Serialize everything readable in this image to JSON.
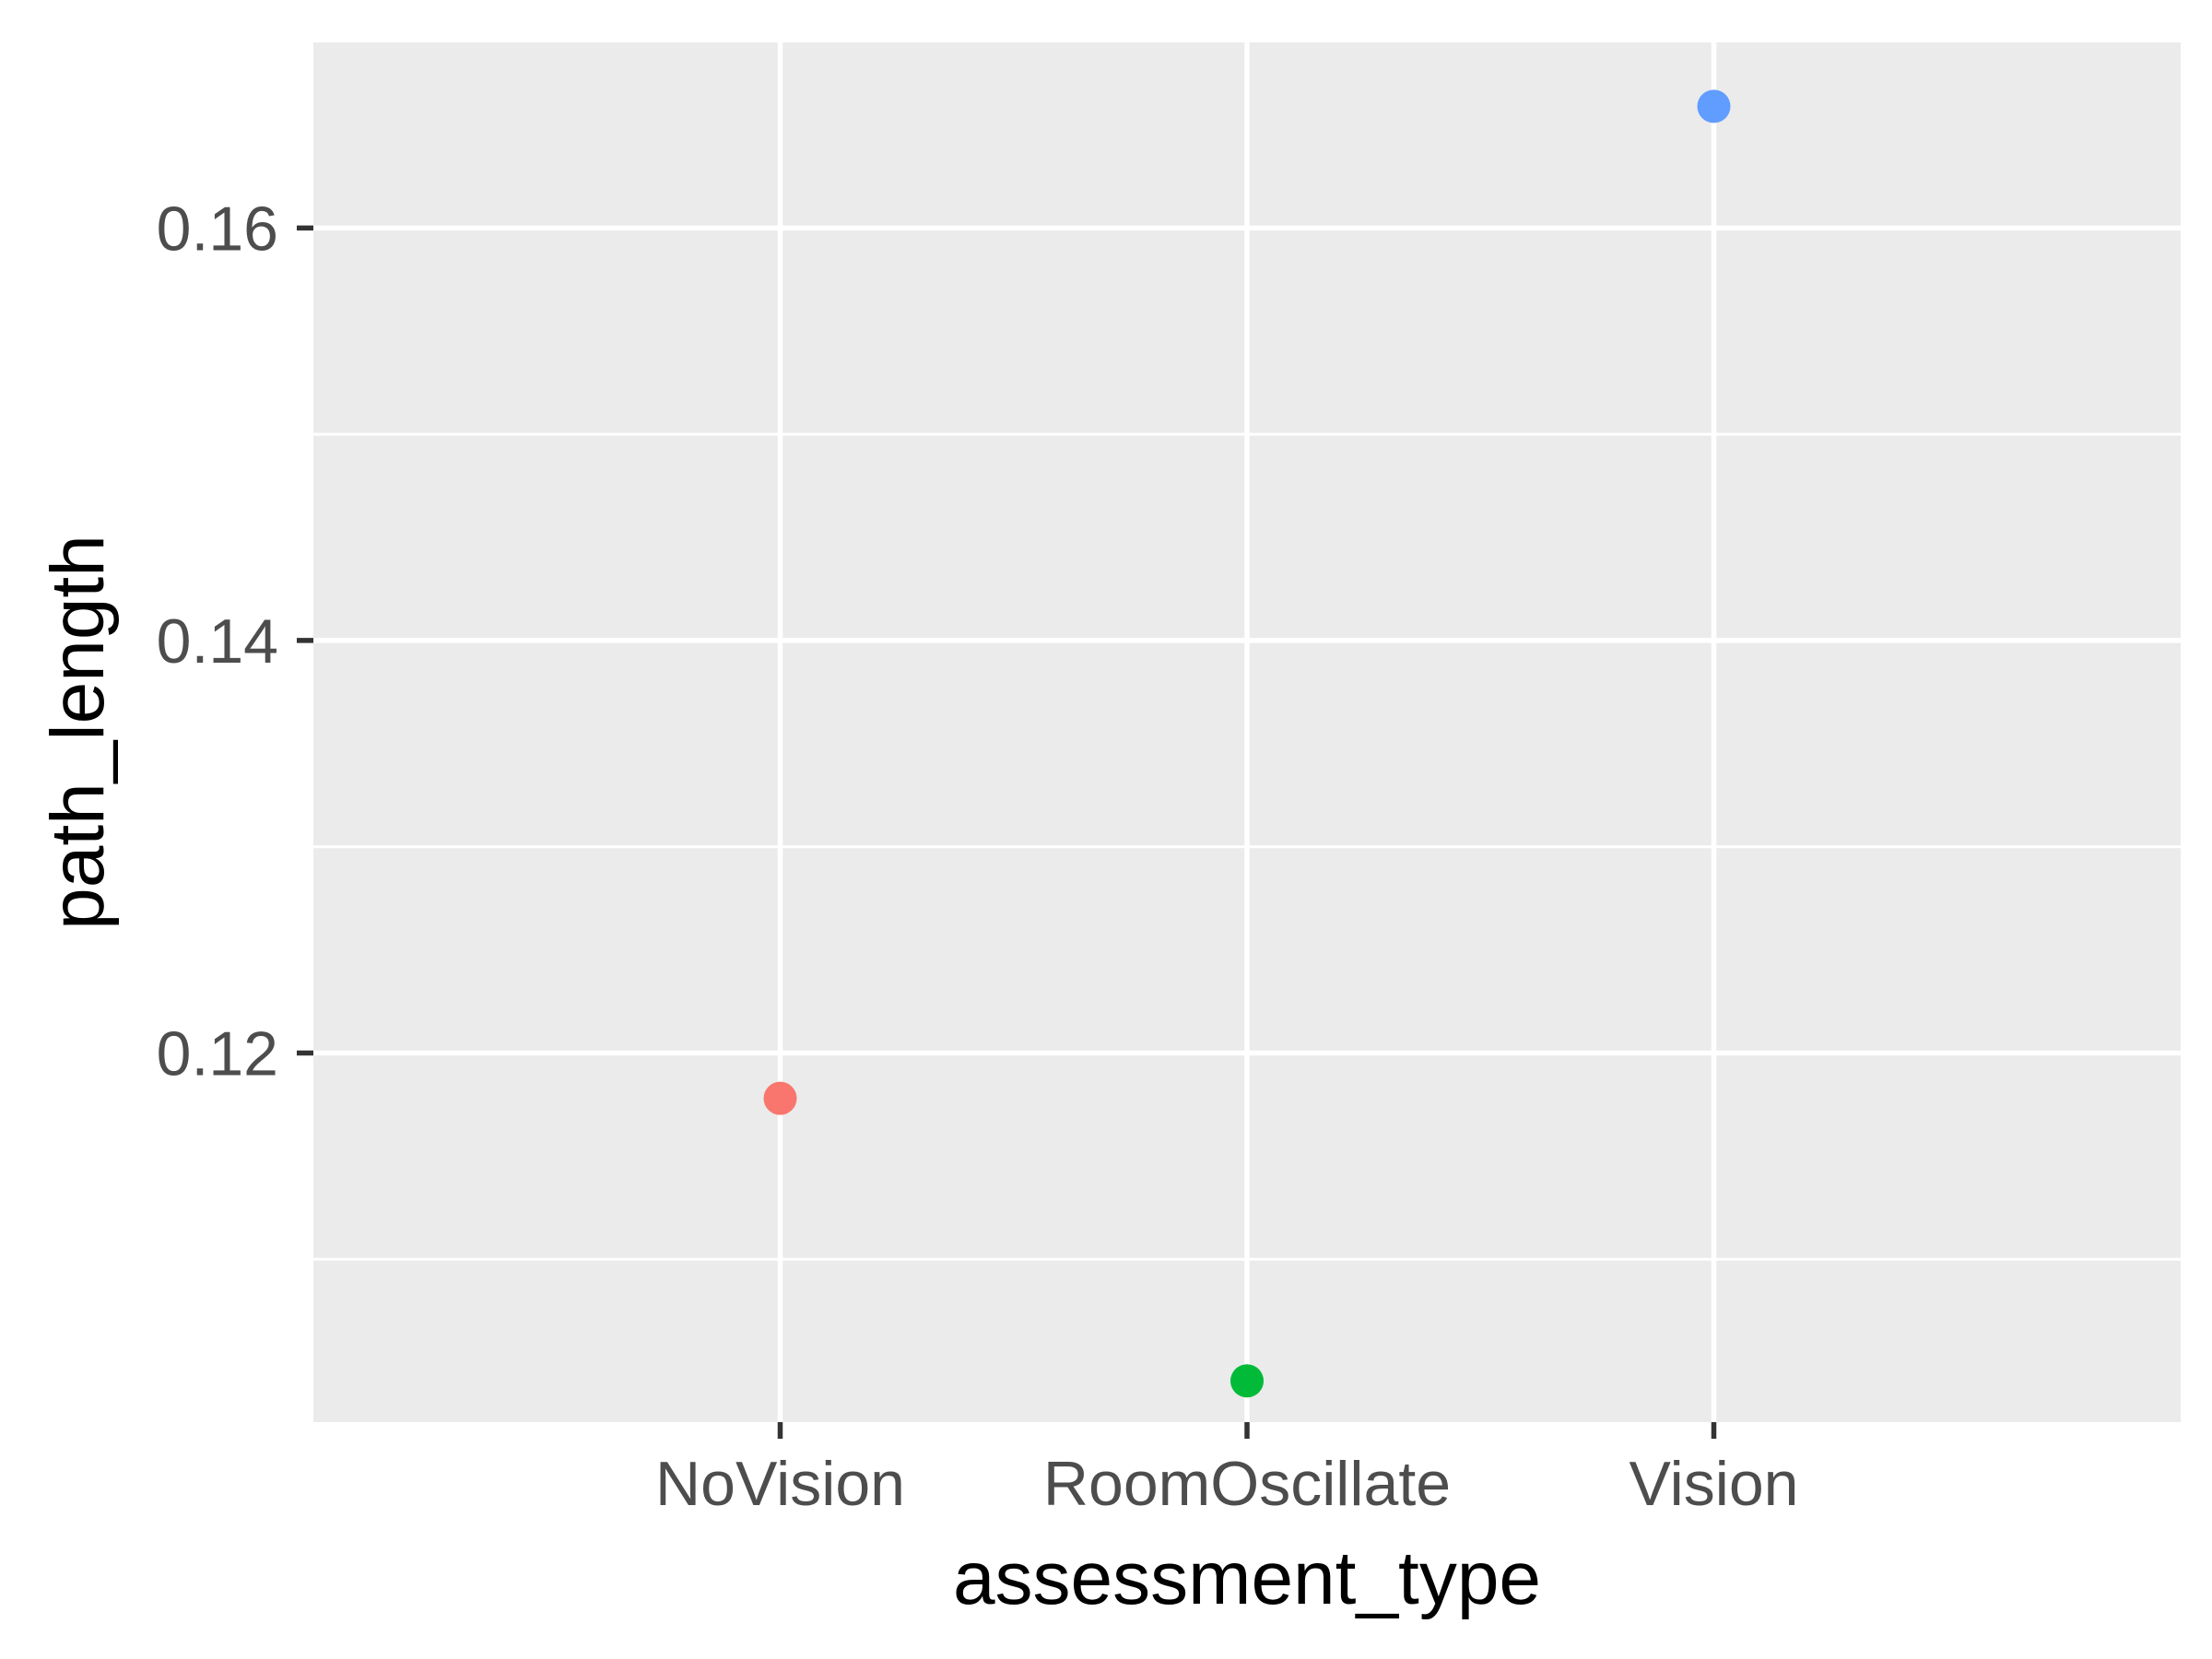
{
  "chart_data": {
    "type": "scatter",
    "title": "",
    "xlabel": "assessment_type",
    "ylabel": "path_length",
    "categories": [
      "NoVision",
      "RoomOscillate",
      "Vision"
    ],
    "points": [
      {
        "x": "NoVision",
        "y": 0.1178,
        "color": "#F8766D"
      },
      {
        "x": "RoomOscillate",
        "y": 0.1041,
        "color": "#00BA38"
      },
      {
        "x": "Vision",
        "y": 0.1659,
        "color": "#619CFF"
      }
    ],
    "y_ticks": [
      0.12,
      0.14,
      0.16
    ],
    "y_tick_labels": [
      "0.12",
      "0.14",
      "0.16"
    ],
    "ylim": [
      0.1021,
      0.169
    ],
    "grid": true,
    "legend": "none",
    "colors": {
      "panel_background": "#EBEBEB",
      "grid": "#FFFFFF",
      "tick_mark": "#333333"
    }
  }
}
